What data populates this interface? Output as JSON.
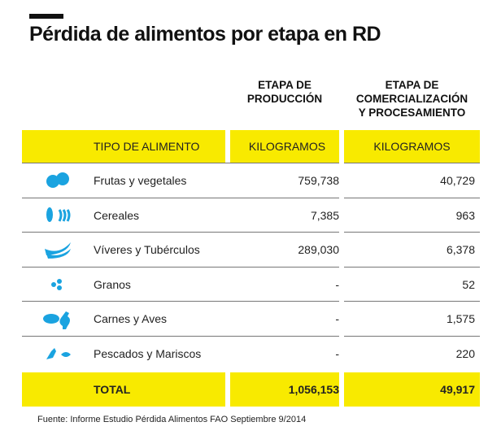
{
  "title": "Pérdida de alimentos por etapa en RD",
  "columns": {
    "production": "ETAPA DE\nPRODUCCIÓN",
    "commerce": "ETAPA DE\nCOMERCIALIZACIÓN\nY PROCESAMIENTO"
  },
  "header": {
    "type": "TIPO DE ALIMENTO",
    "kg1": "KILOGRAMOS",
    "kg2": "KILOGRAMOS"
  },
  "rows": [
    {
      "icon": "orange-icon",
      "label": "Frutas y vegetales",
      "production": "759,738",
      "commerce": "40,729"
    },
    {
      "icon": "corn-wheat-icon",
      "label": "Cereales",
      "production": "7,385",
      "commerce": "963"
    },
    {
      "icon": "banana-icon",
      "label": "Víveres y Tubérculos",
      "production": "289,030",
      "commerce": "6,378"
    },
    {
      "icon": "beans-icon",
      "label": "Granos",
      "production": "-",
      "commerce": "52"
    },
    {
      "icon": "meat-chicken-icon",
      "label": "Carnes y Aves",
      "production": "-",
      "commerce": "1,575"
    },
    {
      "icon": "lobster-fish-icon",
      "label": "Pescados y Mariscos",
      "production": "-",
      "commerce": "220"
    }
  ],
  "total": {
    "label": "TOTAL",
    "production": "1,056,153",
    "commerce": "49,917"
  },
  "source": "Fuente: Informe Estudio Pérdida Alimentos FAO Septiembre 9/2014",
  "colors": {
    "highlight": "#f8ea00",
    "icon": "#1aa3e0"
  }
}
